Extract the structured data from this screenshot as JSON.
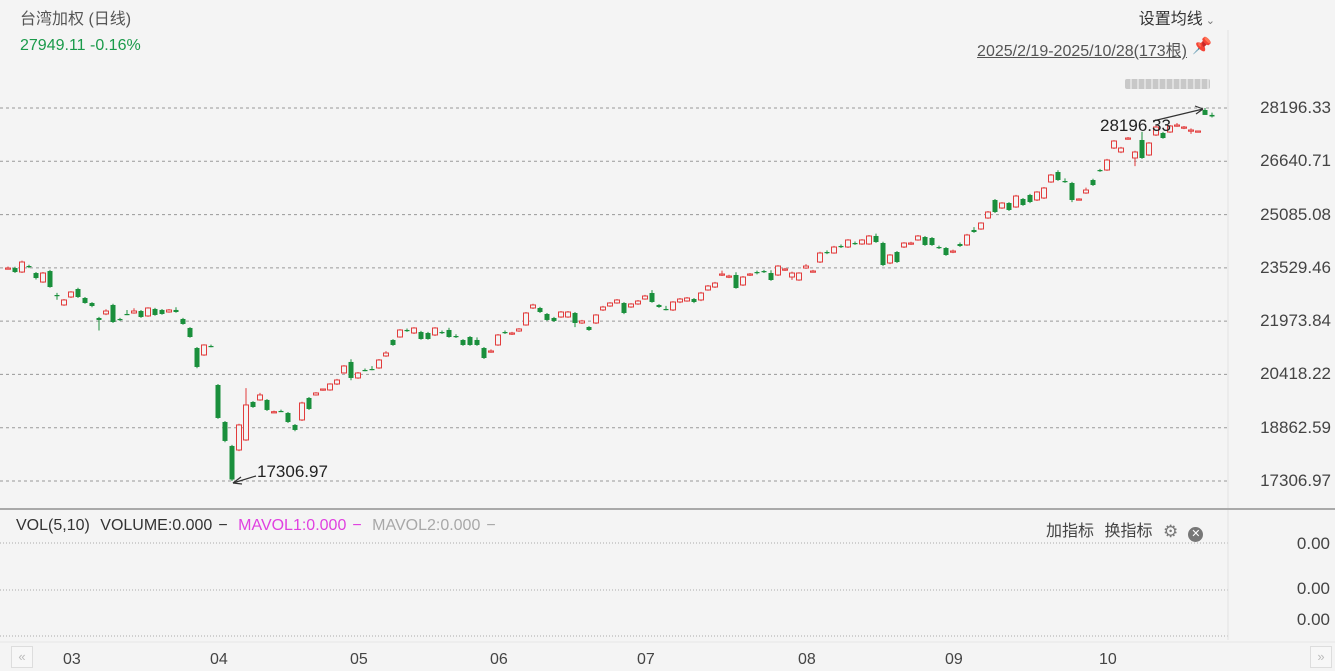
{
  "header": {
    "title": "台湾加权 (日线)",
    "quote": "27949.11 -0.16%",
    "ma_setting_label": "设置均线",
    "range_label": "2025/2/19-2025/10/28(173根)"
  },
  "icons": {
    "pin": "pin-icon",
    "chevron": "chevron-down-icon",
    "gear": "gear-icon",
    "close": "close-icon",
    "scroll_left": "double-chevron-left-icon",
    "scroll_right": "double-chevron-right-icon"
  },
  "colors": {
    "up": "#e23c3c",
    "down": "#1a8f3c",
    "quote": "#1a9a4a",
    "mavol1": "#e040e0",
    "mavol2": "#a8a8a8"
  },
  "volume_pane": {
    "indicator": "VOL(5,10)",
    "volume": "VOLUME:0.000",
    "mavol1": "MAVOL1:0.000",
    "mavol2": "MAVOL2:0.000",
    "dash": "−",
    "add_indicator": "加指标",
    "switch_indicator": "换指标",
    "axis_values": [
      "0.00",
      "0.00",
      "0.00"
    ]
  },
  "chart_data": {
    "type": "candlestick",
    "title": "台湾加权 (日线)",
    "y_ticks": [
      "28196.33",
      "26640.71",
      "25085.08",
      "23529.46",
      "21973.84",
      "20418.22",
      "18862.59",
      "17306.97"
    ],
    "ylim": [
      17306.97,
      28196.33
    ],
    "grid": true,
    "x_ticks": [
      "03",
      "04",
      "05",
      "06",
      "07",
      "08",
      "09",
      "10"
    ],
    "x_tick_candle_index": [
      9,
      30,
      50,
      70,
      91,
      114,
      135,
      157
    ],
    "annotations": {
      "max": "28196.33",
      "min": "17306.97"
    },
    "candle_format": [
      "open",
      "high",
      "low",
      "close"
    ],
    "candles": [
      [
        23525,
        23570,
        23480,
        23525
      ],
      [
        23525,
        23560,
        23380,
        23408
      ],
      [
        23408,
        23740,
        23380,
        23700
      ],
      [
        23583,
        23620,
        23520,
        23554
      ],
      [
        23379,
        23410,
        23190,
        23233
      ],
      [
        23116,
        23410,
        23090,
        23379
      ],
      [
        23437,
        23470,
        22950,
        22970
      ],
      [
        22737,
        22800,
        22600,
        22708
      ],
      [
        22446,
        22620,
        22420,
        22592
      ],
      [
        22679,
        22850,
        22650,
        22825
      ],
      [
        22912,
        22950,
        22650,
        22679
      ],
      [
        22650,
        22680,
        22480,
        22504
      ],
      [
        22504,
        22530,
        22380,
        22416
      ],
      [
        22066,
        22100,
        21700,
        22008
      ],
      [
        22183,
        22320,
        22150,
        22270
      ],
      [
        22446,
        22480,
        21920,
        21949
      ],
      [
        22037,
        22070,
        21980,
        22008
      ],
      [
        22183,
        22300,
        22150,
        22170
      ],
      [
        22212,
        22350,
        22190,
        22270
      ],
      [
        22270,
        22300,
        22070,
        22095
      ],
      [
        22125,
        22380,
        22100,
        22358
      ],
      [
        22329,
        22360,
        22130,
        22154
      ],
      [
        22300,
        22330,
        22160,
        22183
      ],
      [
        22241,
        22330,
        22220,
        22300
      ],
      [
        22300,
        22380,
        22220,
        22241
      ],
      [
        22037,
        22070,
        21870,
        21891
      ],
      [
        21774,
        21800,
        21490,
        21511
      ],
      [
        21190,
        21220,
        20600,
        20636
      ],
      [
        20986,
        21300,
        20960,
        21278
      ],
      [
        21249,
        21290,
        21210,
        21230
      ],
      [
        20110,
        20140,
        19120,
        19147
      ],
      [
        19030,
        19060,
        18440,
        18476
      ],
      [
        18330,
        18360,
        17306.97,
        17350
      ],
      [
        18212,
        18980,
        18180,
        18943
      ],
      [
        18505,
        20020,
        18480,
        19527
      ],
      [
        19614,
        19640,
        19440,
        19468
      ],
      [
        19673,
        19880,
        19650,
        19819
      ],
      [
        19673,
        19700,
        19350,
        19381
      ],
      [
        19322,
        19360,
        19290,
        19330
      ],
      [
        19352,
        19390,
        19320,
        19340
      ],
      [
        19293,
        19320,
        19000,
        19030
      ],
      [
        18943,
        18970,
        18760,
        18797
      ],
      [
        19089,
        19620,
        19060,
        19585
      ],
      [
        19731,
        19760,
        19380,
        19410
      ],
      [
        19819,
        19900,
        19800,
        19877
      ],
      [
        19965,
        20000,
        19940,
        19993
      ],
      [
        19965,
        20160,
        19940,
        20139
      ],
      [
        20139,
        20290,
        20110,
        20256
      ],
      [
        20461,
        20690,
        20440,
        20665
      ],
      [
        20782,
        20860,
        20250,
        20315
      ],
      [
        20315,
        20490,
        20290,
        20461
      ],
      [
        20548,
        20590,
        20510,
        20540
      ],
      [
        20577,
        20660,
        20540,
        20548
      ],
      [
        20607,
        20870,
        20580,
        20840
      ],
      [
        20957,
        21100,
        20930,
        21044
      ],
      [
        21424,
        21450,
        21250,
        21278
      ],
      [
        21511,
        21740,
        21490,
        21716
      ],
      [
        21716,
        21760,
        21660,
        21686
      ],
      [
        21628,
        21800,
        21600,
        21774
      ],
      [
        21657,
        21690,
        21430,
        21453
      ],
      [
        21628,
        21660,
        21430,
        21453
      ],
      [
        21570,
        21800,
        21540,
        21774
      ],
      [
        21657,
        21700,
        21600,
        21628
      ],
      [
        21716,
        21780,
        21490,
        21511
      ],
      [
        21540,
        21590,
        21480,
        21511
      ],
      [
        21424,
        21450,
        21250,
        21278
      ],
      [
        21511,
        21540,
        21250,
        21278
      ],
      [
        21424,
        21500,
        21250,
        21278
      ],
      [
        21190,
        21220,
        20870,
        20898
      ],
      [
        21073,
        21150,
        21050,
        21103
      ],
      [
        21278,
        21600,
        21250,
        21570
      ],
      [
        21657,
        21700,
        21600,
        21628
      ],
      [
        21599,
        21660,
        21570,
        21628
      ],
      [
        21686,
        21770,
        21660,
        21745
      ],
      [
        21862,
        22240,
        21840,
        22212
      ],
      [
        22358,
        22480,
        22330,
        22446
      ],
      [
        22358,
        22390,
        22210,
        22241
      ],
      [
        22183,
        22210,
        21980,
        22008
      ],
      [
        22066,
        22100,
        21950,
        21979
      ],
      [
        22095,
        22270,
        22070,
        22241
      ],
      [
        22095,
        22270,
        22070,
        22241
      ],
      [
        22212,
        22240,
        21800,
        21920
      ],
      [
        21920,
        22010,
        21890,
        21979
      ],
      [
        21803,
        21830,
        21690,
        21716
      ],
      [
        21920,
        22180,
        21890,
        22154
      ],
      [
        22300,
        22420,
        22270,
        22387
      ],
      [
        22416,
        22530,
        22390,
        22504
      ],
      [
        22504,
        22620,
        22480,
        22592
      ],
      [
        22504,
        22530,
        22180,
        22212
      ],
      [
        22387,
        22500,
        22360,
        22475
      ],
      [
        22475,
        22590,
        22450,
        22562
      ],
      [
        22620,
        22740,
        22600,
        22708
      ],
      [
        22795,
        22880,
        22510,
        22533
      ],
      [
        22446,
        22470,
        22360,
        22387
      ],
      [
        22329,
        22420,
        22290,
        22300
      ],
      [
        22300,
        22560,
        22270,
        22533
      ],
      [
        22533,
        22650,
        22500,
        22620
      ],
      [
        22562,
        22680,
        22540,
        22650
      ],
      [
        22620,
        22650,
        22500,
        22533
      ],
      [
        22592,
        22830,
        22560,
        22795
      ],
      [
        22883,
        23030,
        22860,
        23000
      ],
      [
        22970,
        23120,
        22940,
        23087
      ],
      [
        23321,
        23450,
        23290,
        23350
      ],
      [
        23262,
        23330,
        23230,
        23291
      ],
      [
        23321,
        23400,
        22920,
        22941
      ],
      [
        23029,
        23290,
        23000,
        23262
      ],
      [
        23321,
        23380,
        23290,
        23350
      ],
      [
        23408,
        23450,
        23340,
        23379
      ],
      [
        23437,
        23470,
        23380,
        23408
      ],
      [
        23379,
        23460,
        23150,
        23175
      ],
      [
        23321,
        23610,
        23290,
        23583
      ],
      [
        23467,
        23530,
        23440,
        23496
      ],
      [
        23262,
        23420,
        23180,
        23379
      ],
      [
        23175,
        23400,
        23150,
        23379
      ],
      [
        23525,
        23640,
        23500,
        23583
      ],
      [
        23408,
        23470,
        23390,
        23437
      ],
      [
        23700,
        24000,
        23670,
        23963
      ],
      [
        23992,
        24040,
        23930,
        23963
      ],
      [
        23963,
        24170,
        23940,
        24138
      ],
      [
        24168,
        24210,
        24110,
        24138
      ],
      [
        24138,
        24370,
        24110,
        24343
      ],
      [
        24255,
        24300,
        24200,
        24226
      ],
      [
        24226,
        24370,
        24200,
        24343
      ],
      [
        24226,
        24490,
        24200,
        24460
      ],
      [
        24460,
        24530,
        24260,
        24284
      ],
      [
        24255,
        24290,
        23580,
        23613
      ],
      [
        23671,
        23930,
        23640,
        23905
      ],
      [
        23992,
        24020,
        23670,
        23700
      ],
      [
        24138,
        24280,
        24110,
        24255
      ],
      [
        24226,
        24290,
        24200,
        24255
      ],
      [
        24343,
        24490,
        24320,
        24460
      ],
      [
        24430,
        24460,
        24170,
        24197
      ],
      [
        24401,
        24430,
        24170,
        24197
      ],
      [
        24138,
        24180,
        24080,
        24109
      ],
      [
        24109,
        24140,
        23880,
        23905
      ],
      [
        23992,
        24060,
        23960,
        24021
      ],
      [
        24226,
        24270,
        24140,
        24168
      ],
      [
        24197,
        24520,
        24170,
        24489
      ],
      [
        24635,
        24720,
        24550,
        24576
      ],
      [
        24664,
        24860,
        24640,
        24839
      ],
      [
        24985,
        25190,
        24960,
        25160
      ],
      [
        25511,
        25540,
        25130,
        25160
      ],
      [
        25277,
        25450,
        25250,
        25423
      ],
      [
        25423,
        25450,
        25190,
        25219
      ],
      [
        25306,
        25660,
        25280,
        25627
      ],
      [
        25540,
        25570,
        25340,
        25365
      ],
      [
        25657,
        25690,
        25420,
        25452
      ],
      [
        25511,
        25770,
        25480,
        25744
      ],
      [
        25569,
        25890,
        25540,
        25861
      ],
      [
        26036,
        26270,
        26010,
        26240
      ],
      [
        26328,
        26380,
        26070,
        26094
      ],
      [
        26065,
        26140,
        26010,
        26036
      ],
      [
        26007,
        26040,
        25450,
        25511
      ],
      [
        25540,
        25560,
        25520,
        25540
      ],
      [
        25715,
        25870,
        25690,
        25802
      ],
      [
        26094,
        26130,
        25920,
        25948
      ],
      [
        26386,
        26420,
        26330,
        26357
      ],
      [
        26386,
        26710,
        26360,
        26678
      ],
      [
        27028,
        27260,
        27000,
        27233
      ],
      [
        26912,
        27060,
        26880,
        27028
      ],
      [
        27291,
        27350,
        27270,
        27320
      ],
      [
        26737,
        26950,
        26500,
        26912
      ],
      [
        27262,
        27500,
        26710,
        26737
      ],
      [
        26824,
        27200,
        26800,
        27174
      ],
      [
        27408,
        27700,
        27380,
        27641
      ],
      [
        27466,
        27500,
        27300,
        27320
      ],
      [
        27495,
        27700,
        27470,
        27671
      ],
      [
        27671,
        27760,
        27650,
        27700
      ],
      [
        27612,
        27670,
        27580,
        27641
      ],
      [
        27525,
        27600,
        27440,
        27554
      ],
      [
        27525,
        27540,
        27510,
        27525
      ],
      [
        28138,
        28196.33,
        28000,
        27994
      ],
      [
        27994,
        28060,
        27920,
        27949.11
      ]
    ]
  }
}
